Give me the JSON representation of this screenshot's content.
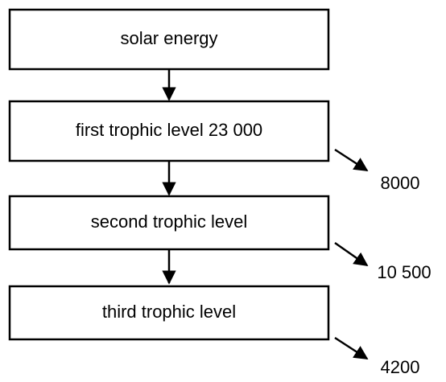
{
  "nodes": [
    {
      "label": "solar energy"
    },
    {
      "label": "first trophic level 23 000"
    },
    {
      "label": "second trophic level"
    },
    {
      "label": "third trophic level"
    }
  ],
  "outputs": [
    "8000",
    "10 500",
    "4200"
  ]
}
